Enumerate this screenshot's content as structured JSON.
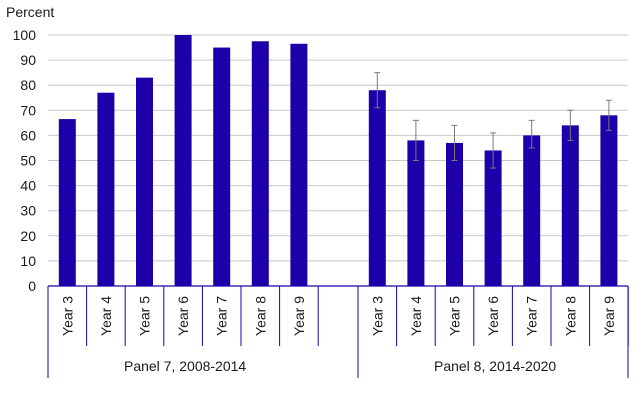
{
  "chart_data": {
    "type": "bar",
    "ylabel": "Percent",
    "ylim": [
      0,
      100
    ],
    "yticks": [
      0,
      10,
      20,
      30,
      40,
      50,
      60,
      70,
      80,
      90,
      100
    ],
    "grid": true,
    "colors": {
      "bar": "#1d00a9",
      "grid": "#c9c9c9",
      "axis": "#1d00a9",
      "error": "#7a7a7a"
    },
    "groups": [
      {
        "name": "Panel 7, 2008-2014",
        "categories": [
          "Year 3",
          "Year 4",
          "Year 5",
          "Year 6",
          "Year 7",
          "Year 8",
          "Year 9"
        ],
        "values": [
          66.5,
          77,
          83,
          100,
          95,
          97.5,
          96.5
        ],
        "error": null
      },
      {
        "name": "Panel 8, 2014-2020",
        "categories": [
          "Year 3",
          "Year 4",
          "Year 5",
          "Year 6",
          "Year 7",
          "Year 8",
          "Year 9"
        ],
        "values": [
          78,
          58,
          57,
          54,
          60,
          64,
          68
        ],
        "error": [
          [
            71,
            85
          ],
          [
            50,
            66
          ],
          [
            50,
            64
          ],
          [
            47,
            61
          ],
          [
            55,
            66
          ],
          [
            58,
            70
          ],
          [
            62,
            74
          ]
        ]
      }
    ]
  }
}
